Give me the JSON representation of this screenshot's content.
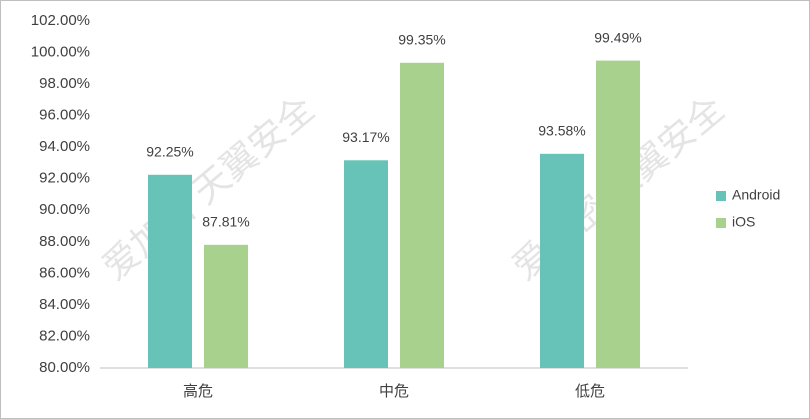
{
  "chart_data": {
    "type": "bar",
    "categories": [
      "高危",
      "中危",
      "低危"
    ],
    "series": [
      {
        "name": "Android",
        "color": "#67c3b7",
        "values": [
          92.25,
          93.17,
          93.58
        ],
        "value_labels": [
          "92.25%",
          "93.17%",
          "93.58%"
        ]
      },
      {
        "name": "iOS",
        "color": "#a9d18e",
        "values": [
          87.81,
          99.35,
          99.49
        ],
        "value_labels": [
          "87.81%",
          "99.35%",
          "99.49%"
        ]
      }
    ],
    "ylim": [
      80,
      102
    ],
    "yticks": [
      {
        "value": 80,
        "label": "80.00%"
      },
      {
        "value": 82,
        "label": "82.00%"
      },
      {
        "value": 84,
        "label": "84.00%"
      },
      {
        "value": 86,
        "label": "86.00%"
      },
      {
        "value": 88,
        "label": "88.00%"
      },
      {
        "value": 90,
        "label": "90.00%"
      },
      {
        "value": 92,
        "label": "92.00%"
      },
      {
        "value": 94,
        "label": "94.00%"
      },
      {
        "value": 96,
        "label": "96.00%"
      },
      {
        "value": 98,
        "label": "98.00%"
      },
      {
        "value": 100,
        "label": "100.00%"
      },
      {
        "value": 102,
        "label": "102.00%"
      }
    ],
    "grid": false,
    "legend": "right"
  },
  "watermark": "爱加密 天翼安全"
}
